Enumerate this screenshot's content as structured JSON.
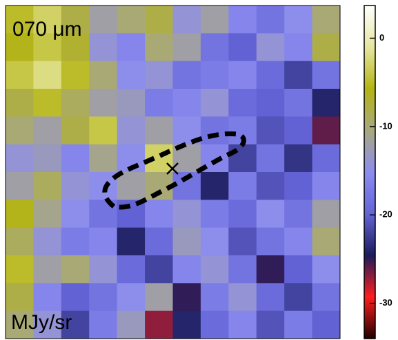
{
  "chart_data": {
    "type": "heatmap",
    "title": "070 μm",
    "unit_label": "MJy/sr",
    "z": [
      [
        -5,
        -3,
        -8,
        -12,
        -10,
        -8,
        -14,
        -12,
        -16,
        -18,
        -15,
        -10
      ],
      [
        -6,
        -4,
        -7,
        -14,
        -16,
        -10,
        -12,
        -18,
        -20,
        -14,
        -16,
        -8
      ],
      [
        -4,
        -2,
        -5,
        -10,
        -15,
        -14,
        -18,
        -17,
        -16,
        -19,
        -22,
        -18
      ],
      [
        -8,
        -5,
        -9,
        -12,
        -13,
        -17,
        -16,
        -14,
        -19,
        -20,
        -18,
        -24
      ],
      [
        -10,
        -12,
        -8,
        -4,
        -14,
        -12,
        -15,
        -18,
        -17,
        -21,
        -20,
        -26
      ],
      [
        -14,
        -13,
        -16,
        -11,
        -15,
        -3,
        -12,
        -16,
        -22,
        -18,
        -23,
        -19
      ],
      [
        -12,
        -9,
        -14,
        -15,
        -12,
        -10,
        -18,
        -24,
        -17,
        -21,
        -20,
        -16
      ],
      [
        -6,
        -11,
        -15,
        -18,
        -20,
        -16,
        -14,
        -17,
        -19,
        -15,
        -18,
        -12
      ],
      [
        -9,
        -14,
        -17,
        -16,
        -24,
        -19,
        -13,
        -15,
        -21,
        -18,
        -16,
        -10
      ],
      [
        -5,
        -12,
        -10,
        -14,
        -19,
        -22,
        -16,
        -14,
        -18,
        -25,
        -20,
        -15
      ],
      [
        -8,
        -16,
        -20,
        -18,
        -15,
        -12,
        -25,
        -17,
        -14,
        -19,
        -22,
        -18
      ],
      [
        -10,
        -14,
        -22,
        -17,
        -13,
        -27,
        -24,
        -19,
        -16,
        -21,
        -17,
        -20
      ]
    ],
    "clim": [
      3.7,
      -34
    ],
    "cticks": [
      0,
      -10,
      -20,
      -30
    ],
    "colormap": [
      "#ffffff",
      "#e6e6a0",
      "#b4b414",
      "#a8a880",
      "#8c8cf0",
      "#6464d8",
      "#1c1c5c",
      "#ff1e1e",
      "#200000"
    ]
  }
}
